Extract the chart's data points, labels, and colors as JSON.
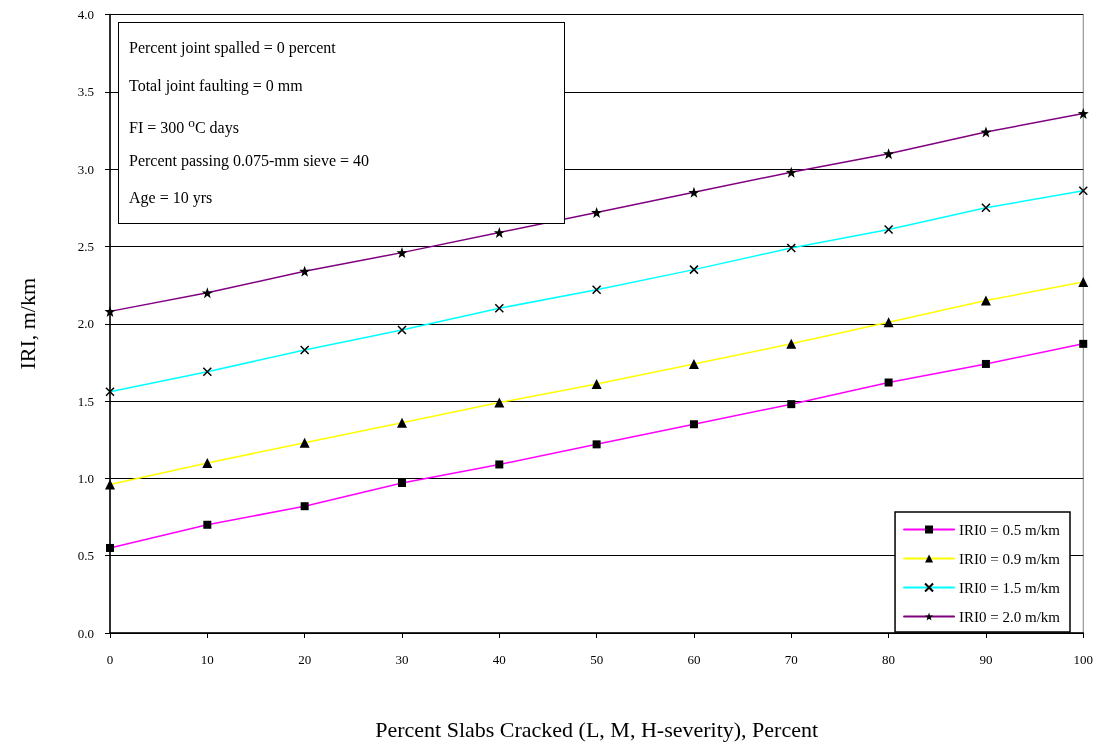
{
  "chart_data": {
    "type": "line",
    "xlabel": "Percent Slabs Cracked (L, M, H-severity), Percent",
    "ylabel": "IRI, m/km",
    "x": [
      0,
      10,
      20,
      30,
      40,
      50,
      60,
      70,
      80,
      90,
      100
    ],
    "series": [
      {
        "name": "IRI0 = 0.5 m/km",
        "color": "#ff00ff",
        "marker": "square",
        "values": [
          0.55,
          0.7,
          0.82,
          0.97,
          1.09,
          1.22,
          1.35,
          1.48,
          1.62,
          1.74,
          1.87
        ]
      },
      {
        "name": "IRI0 = 0.9 m/km",
        "color": "#ffff00",
        "marker": "triangle",
        "values": [
          0.96,
          1.1,
          1.23,
          1.36,
          1.49,
          1.61,
          1.74,
          1.87,
          2.01,
          2.15,
          2.27
        ]
      },
      {
        "name": "IRI0 = 1.5 m/km",
        "color": "#00ffff",
        "marker": "cross",
        "values": [
          1.56,
          1.69,
          1.83,
          1.96,
          2.1,
          2.22,
          2.35,
          2.49,
          2.61,
          2.75,
          2.86
        ]
      },
      {
        "name": "IRI0 = 2.0 m/km",
        "color": "#800080",
        "marker": "star",
        "values": [
          2.08,
          2.2,
          2.34,
          2.46,
          2.59,
          2.72,
          2.85,
          2.98,
          3.1,
          3.24,
          3.36
        ]
      }
    ],
    "xlim": [
      0,
      100
    ],
    "xticks": [
      0,
      10,
      20,
      30,
      40,
      50,
      60,
      70,
      80,
      90,
      100
    ],
    "ylim": [
      0,
      4
    ],
    "yticks": [
      {
        "value": 0,
        "label": "0.0"
      },
      {
        "value": 0.5,
        "label": "0.5"
      },
      {
        "value": 1,
        "label": "1.0"
      },
      {
        "value": 1.5,
        "label": "1.5"
      },
      {
        "value": 2,
        "label": "2.0"
      },
      {
        "value": 2.5,
        "label": "2.5"
      },
      {
        "value": 3,
        "label": "3.0"
      },
      {
        "value": 3.5,
        "label": "3.5"
      },
      {
        "value": 4,
        "label": "4.0"
      }
    ],
    "grid": "y",
    "legend": "bottom right",
    "line_style": "solid",
    "annotations": [
      "Percent joint spalled = 0 percent",
      "Total joint faulting = 0 mm",
      "FI = 300 $^{o}$C days",
      "Percent passing 0.075-mm sieve = 40",
      "Age = 10 yrs"
    ]
  }
}
